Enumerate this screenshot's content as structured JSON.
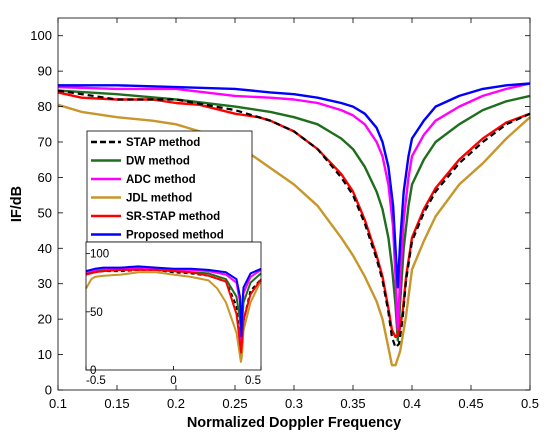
{
  "chart_data": {
    "type": "line",
    "title": "",
    "xlabel": "Normalized Doppler Frequency",
    "ylabel": "IF/dB",
    "xlim": [
      0.1,
      0.5
    ],
    "ylim": [
      0,
      105
    ],
    "x_ticks": [
      "0.1",
      "0.15",
      "0.2",
      "0.25",
      "0.3",
      "0.35",
      "0.4",
      "0.45",
      "0.5"
    ],
    "y_ticks": [
      "0",
      "10",
      "20",
      "30",
      "40",
      "50",
      "60",
      "70",
      "80",
      "90",
      "100"
    ],
    "grid": false,
    "legend_position": "left inside",
    "series": [
      {
        "name": "STAP method",
        "color": "#000000",
        "dash": true,
        "x": [
          0.1,
          0.15,
          0.2,
          0.25,
          0.28,
          0.3,
          0.32,
          0.34,
          0.35,
          0.36,
          0.37,
          0.375,
          0.38,
          0.383,
          0.386,
          0.389,
          0.392,
          0.395,
          0.4,
          0.41,
          0.42,
          0.44,
          0.46,
          0.48,
          0.5
        ],
        "y": [
          84.5,
          82,
          82,
          79,
          76,
          73,
          68,
          60,
          55,
          47,
          37,
          31,
          22,
          15,
          12,
          13,
          20,
          31,
          42,
          50,
          56,
          64,
          70,
          75,
          78
        ]
      },
      {
        "name": "DW method",
        "color": "#1e6e1e",
        "x": [
          0.1,
          0.15,
          0.2,
          0.25,
          0.28,
          0.3,
          0.32,
          0.34,
          0.35,
          0.36,
          0.37,
          0.375,
          0.38,
          0.383,
          0.386,
          0.388,
          0.39,
          0.393,
          0.397,
          0.4,
          0.41,
          0.42,
          0.44,
          0.46,
          0.48,
          0.5
        ],
        "y": [
          84.5,
          83.5,
          82,
          80,
          78.5,
          77,
          75,
          71,
          68,
          63,
          56,
          51,
          43,
          35,
          24,
          14,
          25,
          40,
          52,
          58,
          65,
          70,
          75,
          79,
          81.5,
          83
        ]
      },
      {
        "name": "ADC method",
        "color": "#ff00ff",
        "x": [
          0.1,
          0.15,
          0.2,
          0.25,
          0.28,
          0.3,
          0.32,
          0.34,
          0.35,
          0.36,
          0.37,
          0.375,
          0.38,
          0.384,
          0.386,
          0.388,
          0.39,
          0.393,
          0.397,
          0.4,
          0.41,
          0.42,
          0.44,
          0.46,
          0.48,
          0.5
        ],
        "y": [
          85.5,
          85,
          85,
          83,
          82.5,
          82,
          81,
          79,
          77.5,
          75,
          70,
          66,
          58,
          46,
          32,
          17,
          32,
          48,
          60,
          66,
          72,
          76,
          80,
          83,
          85,
          86.5
        ]
      },
      {
        "name": "JDL method",
        "color": "#c8962a",
        "x": [
          0.1,
          0.12,
          0.15,
          0.18,
          0.2,
          0.22,
          0.25,
          0.27,
          0.3,
          0.32,
          0.34,
          0.35,
          0.36,
          0.37,
          0.375,
          0.38,
          0.383,
          0.386,
          0.39,
          0.395,
          0.4,
          0.41,
          0.42,
          0.44,
          0.46,
          0.48,
          0.5
        ],
        "y": [
          80.5,
          78.5,
          77,
          76,
          75,
          73,
          69.5,
          65,
          58,
          52,
          43,
          38,
          32,
          25,
          20,
          12,
          7,
          7,
          11,
          21,
          34,
          42,
          49,
          58,
          64,
          71,
          77
        ]
      },
      {
        "name": "SR-STAP method",
        "color": "#ff0000",
        "x": [
          0.1,
          0.12,
          0.15,
          0.18,
          0.2,
          0.22,
          0.25,
          0.27,
          0.28,
          0.3,
          0.32,
          0.34,
          0.35,
          0.36,
          0.37,
          0.375,
          0.38,
          0.383,
          0.386,
          0.389,
          0.392,
          0.395,
          0.4,
          0.41,
          0.42,
          0.44,
          0.46,
          0.48,
          0.5
        ],
        "y": [
          84,
          82.5,
          82,
          82,
          81,
          80.5,
          78,
          77,
          76,
          73,
          68,
          61,
          56,
          48,
          38,
          32,
          23,
          17,
          15,
          16,
          22,
          32,
          43,
          51,
          57,
          65,
          71,
          75.5,
          78
        ]
      },
      {
        "name": "Proposed method",
        "color": "#0000ff",
        "x": [
          0.1,
          0.15,
          0.2,
          0.25,
          0.28,
          0.3,
          0.32,
          0.34,
          0.35,
          0.36,
          0.37,
          0.375,
          0.38,
          0.384,
          0.386,
          0.388,
          0.39,
          0.393,
          0.397,
          0.4,
          0.41,
          0.42,
          0.44,
          0.46,
          0.48,
          0.5
        ],
        "y": [
          86,
          86,
          85.5,
          85,
          84,
          83.5,
          82.5,
          81,
          80,
          78,
          74,
          70,
          63,
          52,
          40,
          29,
          42,
          56,
          66,
          71,
          76,
          80,
          83,
          85,
          86,
          86.5
        ]
      }
    ],
    "inset": {
      "xlim": [
        -0.5,
        0.5
      ],
      "ylim": [
        0,
        110
      ],
      "x_ticks": [
        "-0.5",
        "0",
        "0.5"
      ],
      "y_ticks": [
        "0",
        "50",
        "100"
      ],
      "series": [
        {
          "name": "STAP method",
          "x": [
            -0.5,
            -0.45,
            -0.4,
            -0.3,
            -0.2,
            -0.1,
            0,
            0.1,
            0.2,
            0.3,
            0.36,
            0.38,
            0.386,
            0.39,
            0.4,
            0.44,
            0.5
          ],
          "y": [
            83,
            84,
            85,
            85,
            86,
            86,
            84,
            83,
            81,
            76,
            55,
            22,
            12,
            20,
            42,
            68,
            78
          ]
        },
        {
          "name": "DW method",
          "x": [
            -0.5,
            -0.45,
            -0.4,
            -0.3,
            -0.2,
            -0.1,
            0,
            0.1,
            0.2,
            0.3,
            0.36,
            0.38,
            0.388,
            0.395,
            0.4,
            0.44,
            0.5
          ],
          "y": [
            84,
            85,
            86,
            86,
            87,
            86,
            85,
            84,
            83,
            78,
            63,
            43,
            14,
            45,
            58,
            75,
            83
          ]
        },
        {
          "name": "ADC method",
          "x": [
            -0.5,
            -0.45,
            -0.4,
            -0.3,
            -0.2,
            -0.1,
            0,
            0.1,
            0.2,
            0.3,
            0.36,
            0.38,
            0.388,
            0.395,
            0.4,
            0.44,
            0.5
          ],
          "y": [
            84,
            86,
            87,
            87,
            88,
            87,
            86,
            86,
            85,
            82,
            75,
            58,
            17,
            55,
            66,
            80,
            86
          ]
        },
        {
          "name": "JDL method",
          "x": [
            -0.5,
            -0.47,
            -0.45,
            -0.4,
            -0.3,
            -0.2,
            -0.1,
            0,
            0.1,
            0.2,
            0.25,
            0.3,
            0.36,
            0.38,
            0.385,
            0.39,
            0.4,
            0.44,
            0.5
          ],
          "y": [
            70,
            78,
            80,
            81,
            82,
            84,
            84,
            82,
            80,
            77,
            70,
            58,
            32,
            12,
            7,
            11,
            34,
            58,
            77
          ]
        },
        {
          "name": "SR-STAP method",
          "x": [
            -0.5,
            -0.45,
            -0.4,
            -0.3,
            -0.2,
            -0.1,
            0,
            0.1,
            0.2,
            0.3,
            0.36,
            0.38,
            0.386,
            0.39,
            0.4,
            0.44,
            0.5
          ],
          "y": [
            82,
            84,
            85,
            86,
            86,
            86,
            85,
            84,
            81,
            76,
            48,
            23,
            15,
            22,
            43,
            65,
            78
          ]
        },
        {
          "name": "Proposed method",
          "x": [
            -0.5,
            -0.45,
            -0.4,
            -0.3,
            -0.2,
            -0.1,
            0,
            0.1,
            0.2,
            0.3,
            0.36,
            0.38,
            0.388,
            0.395,
            0.4,
            0.44,
            0.5
          ],
          "y": [
            85,
            87,
            88,
            88,
            89,
            88,
            87,
            87,
            86,
            84,
            78,
            63,
            29,
            60,
            71,
            83,
            87
          ]
        }
      ]
    }
  }
}
